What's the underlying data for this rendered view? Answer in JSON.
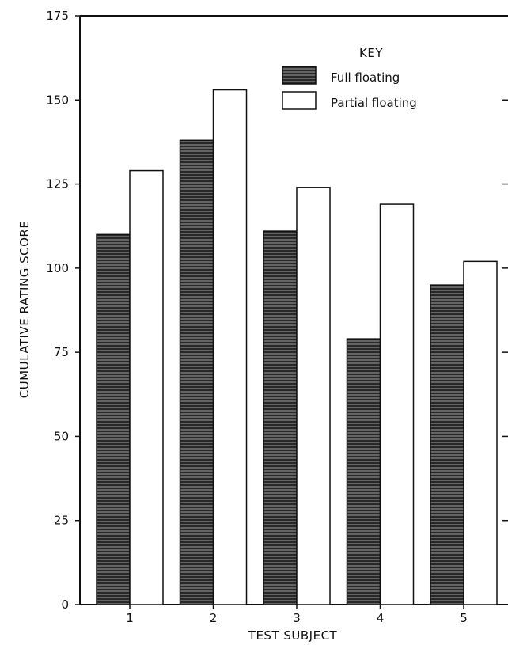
{
  "chart_data": {
    "type": "bar",
    "title": "",
    "xlabel": "TEST SUBJECT",
    "ylabel": "CUMULATIVE RATING SCORE",
    "categories": [
      "1",
      "2",
      "3",
      "4",
      "5"
    ],
    "ylim": [
      0,
      175
    ],
    "yticks": [
      "0",
      "25",
      "50",
      "75",
      "100",
      "125",
      "150",
      "175"
    ],
    "grid": false,
    "legend": {
      "title": "KEY",
      "placement": "top-center"
    },
    "series": [
      {
        "name": "Full floating",
        "values": [
          110,
          138,
          111,
          79,
          95
        ],
        "fill": "#3a3a3a",
        "pattern": "hatched"
      },
      {
        "name": "Partial floating",
        "values": [
          129,
          153,
          124,
          119,
          102
        ],
        "fill": "#ffffff"
      }
    ]
  }
}
